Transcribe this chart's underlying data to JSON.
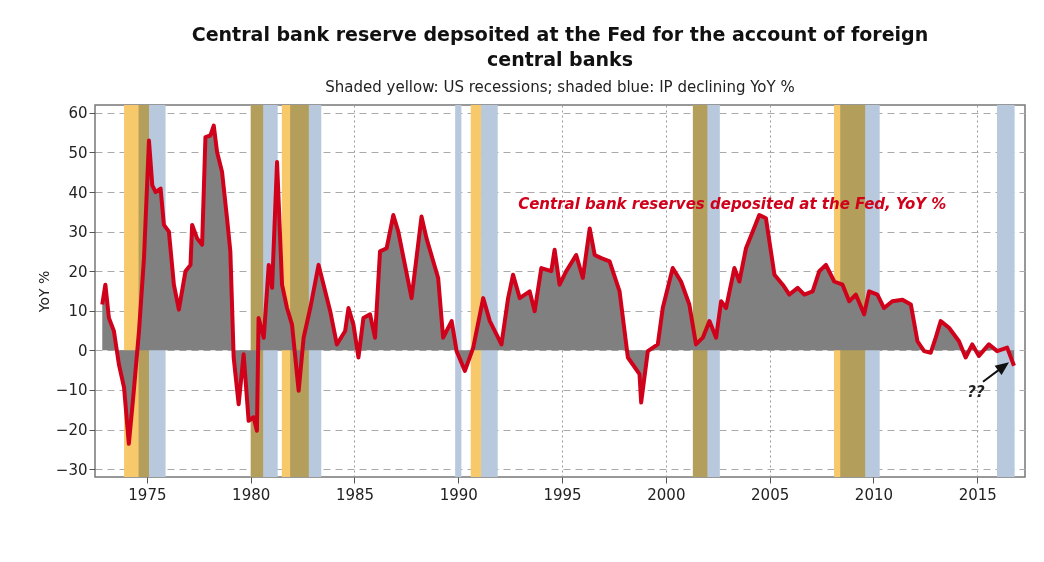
{
  "chart_data": {
    "type": "area",
    "title": "Central bank reserve depsoited at the Fed for the account of foreign central banks",
    "subtitle": "Shaded yellow: US recessions; shaded blue: IP declining YoY %",
    "ylabel": "YoY %",
    "x": [
      1972.85,
      1973.0,
      1973.17,
      1973.41,
      1973.65,
      1973.9,
      1974.13,
      1974.37,
      1974.62,
      1974.86,
      1975.1,
      1975.26,
      1975.42,
      1975.66,
      1975.82,
      1976.06,
      1976.3,
      1976.54,
      1976.86,
      1977.1,
      1977.18,
      1977.42,
      1977.66,
      1977.82,
      1978.06,
      1978.22,
      1978.38,
      1978.62,
      1978.86,
      1979.02,
      1979.18,
      1979.42,
      1979.66,
      1979.9,
      1980.14,
      1980.3,
      1980.38,
      1980.63,
      1980.87,
      1981.03,
      1981.27,
      1981.51,
      1981.75,
      1981.99,
      1982.31,
      1982.55,
      1982.87,
      1983.27,
      1983.51,
      1983.83,
      1984.15,
      1984.55,
      1984.71,
      1984.95,
      1985.19,
      1985.43,
      1985.75,
      1985.99,
      1986.23,
      1986.55,
      1986.87,
      1987.11,
      1987.75,
      1988.23,
      1988.47,
      1989.03,
      1989.27,
      1989.68,
      1989.92,
      1990.32,
      1990.72,
      1991.2,
      1991.52,
      1992.08,
      1992.4,
      1992.64,
      1992.96,
      1993.44,
      1993.68,
      1994.0,
      1994.48,
      1994.64,
      1994.88,
      1995.2,
      1995.68,
      1996.0,
      1996.33,
      1996.57,
      1996.89,
      1997.29,
      1997.77,
      1998.17,
      1998.73,
      1998.81,
      1999.13,
      1999.61,
      1999.85,
      2000.33,
      2000.73,
      2001.13,
      2001.45,
      2001.78,
      2002.1,
      2002.42,
      2002.66,
      2002.9,
      2003.3,
      2003.54,
      2003.86,
      2004.18,
      2004.5,
      2004.82,
      2005.23,
      2005.63,
      2005.95,
      2006.35,
      2006.67,
      2007.07,
      2007.39,
      2007.71,
      2008.11,
      2008.51,
      2008.83,
      2009.15,
      2009.55,
      2009.79,
      2010.19,
      2010.51,
      2010.91,
      2011.4,
      2011.8,
      2012.12,
      2012.44,
      2012.76,
      2013.0,
      2013.24,
      2013.64,
      2014.12,
      2014.44,
      2014.76,
      2015.08,
      2015.56,
      2015.96,
      2016.44,
      2016.77
    ],
    "series": [
      {
        "name": "Central bank reserves deposited at the Fed, YoY %",
        "color": "#d0021b",
        "values": [
          11.6,
          16.6,
          8.2,
          4.9,
          -3.5,
          -9.4,
          -23.6,
          -10.2,
          4.9,
          23.3,
          53,
          41.7,
          40,
          40.9,
          31.7,
          30,
          16.6,
          10.3,
          20,
          21.6,
          31.7,
          28.3,
          26.7,
          53.9,
          54.3,
          56.8,
          50.1,
          45.1,
          33.4,
          25,
          -1.8,
          -13.6,
          -1,
          -17.8,
          -16.9,
          -20.3,
          8.2,
          3.2,
          21.6,
          15.8,
          47.6,
          16.6,
          10.7,
          6.5,
          -10.2,
          3.2,
          10.7,
          21.6,
          16.6,
          9.9,
          1.5,
          4.9,
          10.7,
          6.5,
          -1.8,
          8.2,
          9.1,
          3.2,
          25,
          25.8,
          34.2,
          30,
          13.2,
          33.8,
          28.3,
          18.3,
          3.2,
          7.4,
          -0.2,
          -5.2,
          0.7,
          13.2,
          7.4,
          1.5,
          13.2,
          19.1,
          13.2,
          14.9,
          9.9,
          20.8,
          20,
          25.4,
          16.6,
          20,
          24.1,
          18.3,
          30.8,
          24.1,
          23.3,
          22.5,
          14.9,
          -1.8,
          -6,
          -13.2,
          -0.2,
          1.5,
          10.7,
          20.8,
          17.4,
          11.6,
          1.5,
          3.2,
          7.4,
          3.2,
          12.4,
          10.7,
          20.8,
          17.4,
          25.8,
          30,
          34.2,
          33.4,
          19.1,
          16.6,
          14.1,
          15.8,
          14.1,
          14.9,
          20,
          21.6,
          17.4,
          16.6,
          12.4,
          14.1,
          9.1,
          14.9,
          14.1,
          10.7,
          12.4,
          12.8,
          11.6,
          2.3,
          -0.2,
          -0.6,
          3.2,
          7.4,
          5.7,
          2.3,
          -1.8,
          1.5,
          -1.4,
          1.5,
          -0.2,
          0.7,
          -3.9
        ]
      }
    ],
    "xlim": [
      1972.5,
      2017.3
    ],
    "xticks": [
      1975,
      1980,
      1985,
      1990,
      1995,
      2000,
      2005,
      2010,
      2015
    ],
    "ylim": [
      -32,
      62
    ],
    "yticks": [
      -30,
      -20,
      -10,
      0,
      10,
      20,
      30,
      40,
      50,
      60
    ],
    "grid": true,
    "bands": [
      {
        "axis": "x",
        "from": 1973.9,
        "to": 1975.1,
        "color": "#f8c96a"
      },
      {
        "axis": "x",
        "from": 1980.0,
        "to": 1980.6,
        "color": "#f8c96a"
      },
      {
        "axis": "x",
        "from": 1981.5,
        "to": 1982.8,
        "color": "#f8c96a"
      },
      {
        "axis": "x",
        "from": 1990.6,
        "to": 1991.1,
        "color": "#f8c96a"
      },
      {
        "axis": "x",
        "from": 2001.3,
        "to": 2002.0,
        "color": "#f8c96a"
      },
      {
        "axis": "x",
        "from": 2008.1,
        "to": 2009.6,
        "color": "#f8c96a"
      },
      {
        "axis": "x",
        "from": 1974.6,
        "to": 1975.9,
        "color": "#b8c9dd"
      },
      {
        "axis": "x",
        "from": 1980.0,
        "to": 1981.3,
        "color": "#b8c9dd"
      },
      {
        "axis": "x",
        "from": 1981.9,
        "to": 1983.4,
        "color": "#b8c9dd"
      },
      {
        "axis": "x",
        "from": 1989.85,
        "to": 1990.15,
        "color": "#b8c9dd"
      },
      {
        "axis": "x",
        "from": 1991.1,
        "to": 1991.9,
        "color": "#b8c9dd"
      },
      {
        "axis": "x",
        "from": 2001.3,
        "to": 2002.6,
        "color": "#b8c9dd"
      },
      {
        "axis": "x",
        "from": 2008.4,
        "to": 2010.3,
        "color": "#b8c9dd"
      },
      {
        "axis": "x",
        "from": 2015.95,
        "to": 2016.8,
        "color": "#b8c9dd"
      }
    ],
    "annotations": [
      {
        "text": "??",
        "x": 2016.77,
        "y": -3.9
      }
    ],
    "legend": false,
    "marker": "none",
    "line_style": "solid"
  }
}
